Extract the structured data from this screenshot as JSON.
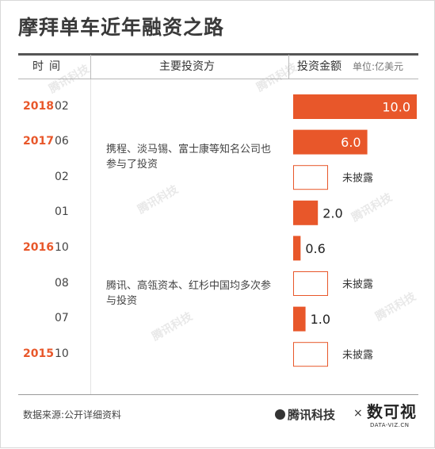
{
  "title": "摩拜单车近年融资之路",
  "header": {
    "time_label": "时间",
    "investor_label": "主要投资方",
    "amount_label": "投资金额",
    "unit_label": "单位:亿美元"
  },
  "investor_notes": [
    "携程、淡马锡、富士康等知名公司也参与了投资",
    "腾讯、高瓴资本、红杉中国均多次参与投资"
  ],
  "colors": {
    "accent": "#e8572a",
    "empty_border": "#e8572a"
  },
  "chart_data": {
    "type": "bar",
    "orientation": "horizontal",
    "rows": [
      {
        "year": "2018",
        "month": "02",
        "value": 10.0,
        "label": "10.0"
      },
      {
        "year": "2017",
        "month": "06",
        "value": 6.0,
        "label": "6.0"
      },
      {
        "year": "",
        "month": "02",
        "value": null,
        "label": "未披露"
      },
      {
        "year": "",
        "month": "01",
        "value": 2.0,
        "label": "2.0"
      },
      {
        "year": "2016",
        "month": "10",
        "value": 0.6,
        "label": "0.6"
      },
      {
        "year": "",
        "month": "08",
        "value": null,
        "label": "未披露"
      },
      {
        "year": "",
        "month": "07",
        "value": 1.0,
        "label": "1.0"
      },
      {
        "year": "2015",
        "month": "10",
        "value": null,
        "label": "未披露"
      }
    ],
    "xlim": [
      0,
      10
    ]
  },
  "footer": {
    "source": "数据来源:公开详细资料",
    "logo_tencent": "腾讯科技",
    "logo_x": "×",
    "logo_shuji": "数可视",
    "logo_url": "DATA-VIZ.CN"
  },
  "watermark": "腾讯科技"
}
